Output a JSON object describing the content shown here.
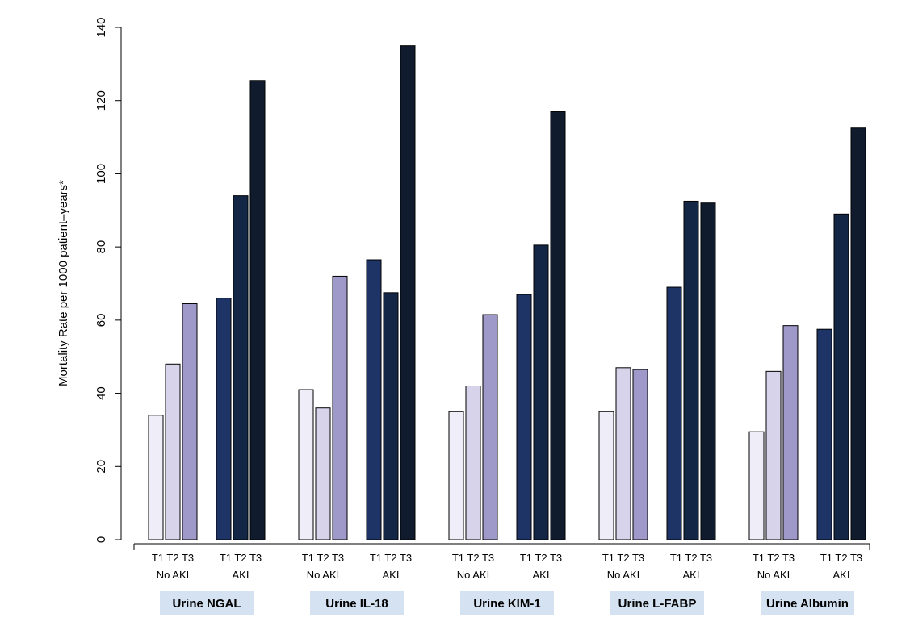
{
  "chart_data": {
    "type": "bar",
    "ylabel": "Mortality Rate per 1000 patient–years*",
    "ylim": [
      0,
      140
    ],
    "yticks": [
      0,
      20,
      40,
      60,
      80,
      100,
      120,
      140
    ],
    "grid": false,
    "subgroup_labels": [
      "No AKI",
      "AKI"
    ],
    "tertile_labels": "T1 T2 T3",
    "series": [
      {
        "subgroup": "No AKI",
        "tertile": "T1",
        "color": "#efedf7"
      },
      {
        "subgroup": "No AKI",
        "tertile": "T2",
        "color": "#d6d3ea"
      },
      {
        "subgroup": "No AKI",
        "tertile": "T3",
        "color": "#9f99c9"
      },
      {
        "subgroup": "AKI",
        "tertile": "T1",
        "color": "#1f3466"
      },
      {
        "subgroup": "AKI",
        "tertile": "T2",
        "color": "#142645"
      },
      {
        "subgroup": "AKI",
        "tertile": "T3",
        "color": "#111b2e"
      }
    ],
    "groups": [
      {
        "name": "Urine NGAL",
        "no_aki": [
          34,
          48,
          64.5
        ],
        "aki": [
          66,
          94,
          125.5
        ]
      },
      {
        "name": "Urine IL-18",
        "no_aki": [
          41,
          36,
          72
        ],
        "aki": [
          76.5,
          67.5,
          135
        ]
      },
      {
        "name": "Urine KIM-1",
        "no_aki": [
          35,
          42,
          61.5
        ],
        "aki": [
          67,
          80.5,
          117
        ]
      },
      {
        "name": "Urine L-FABP",
        "no_aki": [
          35,
          47,
          46.5
        ],
        "aki": [
          69,
          92.5,
          92
        ]
      },
      {
        "name": "Urine Albumin",
        "no_aki": [
          29.5,
          46,
          58.5
        ],
        "aki": [
          57.5,
          89,
          112.5
        ]
      }
    ],
    "group_label_bg": "#d5e2f2"
  }
}
